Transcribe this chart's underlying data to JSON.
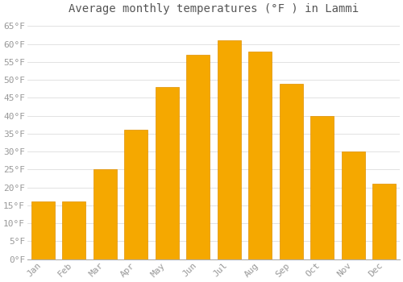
{
  "title": "Average monthly temperatures (°F ) in Lammi",
  "months": [
    "Jan",
    "Feb",
    "Mar",
    "Apr",
    "May",
    "Jun",
    "Jul",
    "Aug",
    "Sep",
    "Oct",
    "Nov",
    "Dec"
  ],
  "values": [
    16,
    16,
    25,
    36,
    48,
    57,
    61,
    58,
    49,
    40,
    30,
    21
  ],
  "bar_color_top": "#FFC030",
  "bar_color_bot": "#F5A800",
  "bar_edge_color": "#E09000",
  "background_color": "#FFFFFF",
  "grid_color": "#DDDDDD",
  "ylim": [
    0,
    67
  ],
  "yticks": [
    0,
    5,
    10,
    15,
    20,
    25,
    30,
    35,
    40,
    45,
    50,
    55,
    60,
    65
  ],
  "title_fontsize": 10,
  "tick_fontsize": 8,
  "tick_color": "#999999",
  "title_color": "#555555",
  "font_family": "monospace"
}
